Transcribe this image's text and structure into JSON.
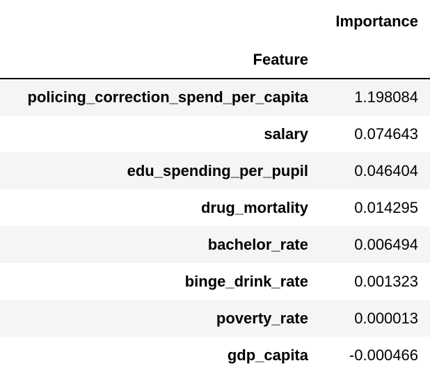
{
  "table": {
    "column_header": "Importance",
    "index_name": "Feature",
    "rows": [
      {
        "feature": "policing_correction_spend_per_capita",
        "importance": "1.198084"
      },
      {
        "feature": "salary",
        "importance": "0.074643"
      },
      {
        "feature": "edu_spending_per_pupil",
        "importance": "0.046404"
      },
      {
        "feature": "drug_mortality",
        "importance": "0.014295"
      },
      {
        "feature": "bachelor_rate",
        "importance": "0.006494"
      },
      {
        "feature": "binge_drink_rate",
        "importance": "0.001323"
      },
      {
        "feature": "poverty_rate",
        "importance": "0.000013"
      },
      {
        "feature": "gdp_capita",
        "importance": "-0.000466"
      }
    ]
  },
  "colors": {
    "row_stripe": "#f5f5f5",
    "background": "#ffffff",
    "header_rule": "#000000"
  }
}
